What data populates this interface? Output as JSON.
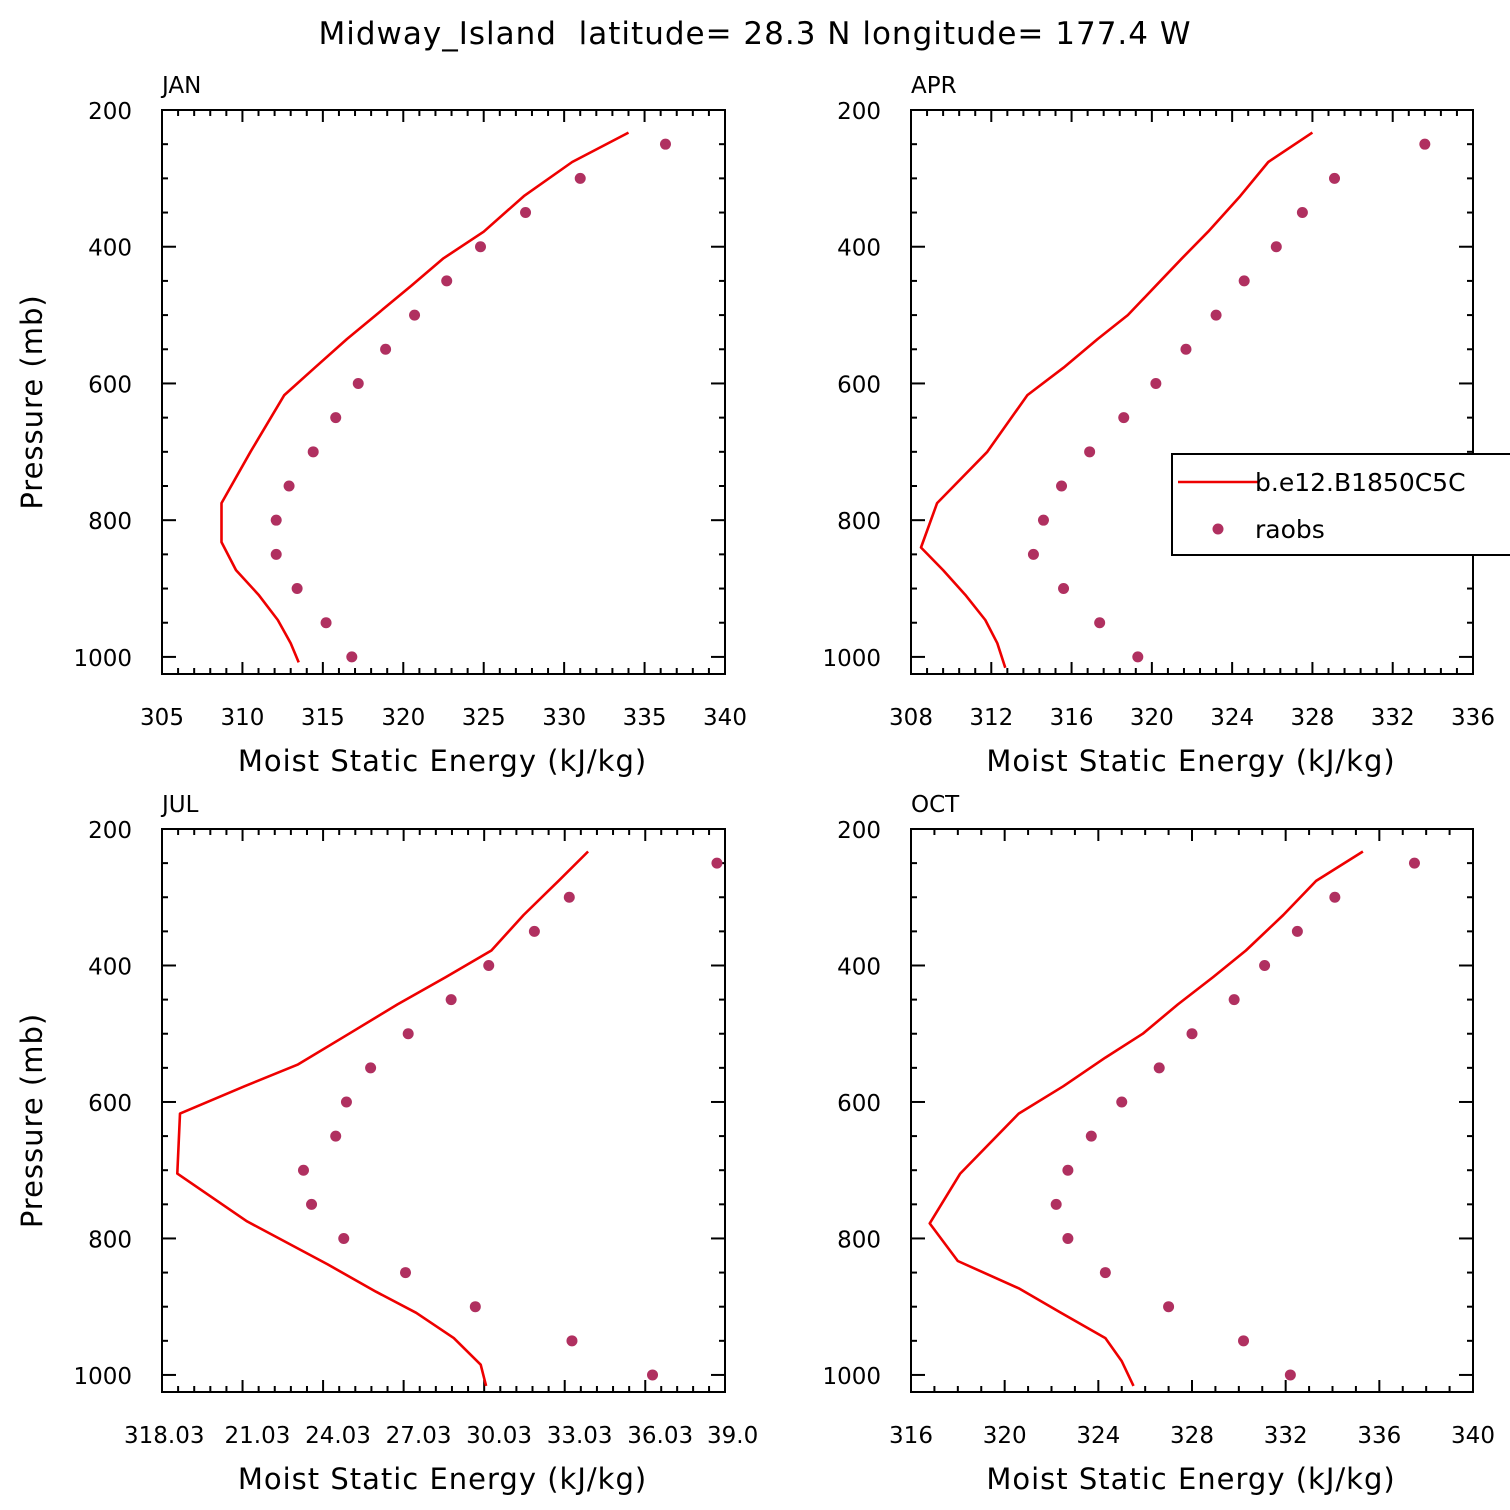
{
  "title": "Midway_Island  latitude= 28.3 N longitude= 177.4 W",
  "colors": {
    "model": "#ee0000",
    "obs": "#b03060",
    "axis": "#000000"
  },
  "legend": {
    "placement": "right side of APR panel",
    "entries": [
      {
        "label": "b.e12.B1850C5C",
        "style": "line",
        "color": "#ee0000"
      },
      {
        "label": "raobs",
        "style": "dot",
        "color": "#b03060"
      }
    ]
  },
  "chart_data": [
    {
      "type": "line",
      "panel": "JAN",
      "xlabel": "Moist Static Energy (kJ/kg)",
      "ylabel": "Pressure (mb)",
      "xlim": [
        305,
        340
      ],
      "ylim": [
        1000,
        200
      ],
      "xticks": [
        305,
        310,
        315,
        320,
        325,
        330,
        335,
        340
      ],
      "xtick_labels": [
        "305",
        "310",
        "315",
        "320",
        "325",
        "330",
        "335",
        "340"
      ],
      "yticks": [
        200,
        400,
        600,
        800,
        1000
      ],
      "ytick_labels": [
        "200",
        "400",
        "600",
        "800",
        "1000"
      ],
      "series": [
        {
          "name": "b.e12.B1850C5C",
          "style": "line",
          "x": [
            334.0,
            330.5,
            327.5,
            325.0,
            322.5,
            320.5,
            318.3,
            316.5,
            314.5,
            312.6,
            310.5,
            308.7,
            308.7,
            309.6,
            311.0,
            312.2,
            313.0,
            313.5
          ],
          "y": [
            233,
            276,
            326,
            378,
            417,
            457,
            500,
            535,
            577,
            617,
            700,
            775,
            832,
            873,
            909,
            946,
            980,
            1008
          ]
        },
        {
          "name": "raobs",
          "style": "dot",
          "x": [
            336.3,
            331.0,
            327.6,
            324.8,
            322.7,
            320.7,
            318.9,
            317.2,
            315.8,
            314.4,
            312.9,
            312.1,
            312.1,
            313.4,
            315.2,
            316.8
          ],
          "y": [
            250,
            300,
            350,
            400,
            450,
            500,
            550,
            600,
            650,
            700,
            750,
            800,
            850,
            900,
            950,
            1000
          ]
        }
      ]
    },
    {
      "type": "line",
      "panel": "APR",
      "xlabel": "Moist Static Energy (kJ/kg)",
      "ylabel": "",
      "xlim": [
        308,
        336
      ],
      "ylim": [
        1000,
        200
      ],
      "xticks": [
        308,
        312,
        316,
        320,
        324,
        328,
        332,
        336
      ],
      "xtick_labels": [
        "308",
        "312",
        "316",
        "320",
        "324",
        "328",
        "332",
        "336"
      ],
      "yticks": [
        200,
        400,
        600,
        800,
        1000
      ],
      "ytick_labels": [
        "200",
        "400",
        "600",
        "800",
        "1000"
      ],
      "series": [
        {
          "name": "b.e12.B1850C5C",
          "style": "line",
          "x": [
            328.0,
            325.8,
            324.4,
            322.8,
            321.5,
            320.2,
            318.8,
            317.3,
            315.6,
            313.8,
            311.8,
            309.3,
            308.5,
            309.6,
            310.7,
            311.7,
            312.3,
            312.7
          ],
          "y": [
            233,
            276,
            326,
            378,
            417,
            457,
            500,
            535,
            577,
            617,
            700,
            775,
            840,
            873,
            909,
            946,
            980,
            1016
          ]
        },
        {
          "name": "raobs",
          "style": "dot",
          "x": [
            333.6,
            329.1,
            327.5,
            326.2,
            324.6,
            323.2,
            321.7,
            320.2,
            318.6,
            316.9,
            315.5,
            314.6,
            314.1,
            315.6,
            317.4,
            319.3
          ],
          "y": [
            250,
            300,
            350,
            400,
            450,
            500,
            550,
            600,
            650,
            700,
            750,
            800,
            850,
            900,
            950,
            1000
          ]
        }
      ]
    },
    {
      "type": "line",
      "panel": "JUL",
      "xlabel": "Moist Static Energy (kJ/kg)",
      "ylabel": "Pressure (mb)",
      "xlim": [
        318.03,
        339.0
      ],
      "ylim": [
        1000,
        200
      ],
      "xticks": [
        318.03,
        321.03,
        324.03,
        327.03,
        330.03,
        333.03,
        336.03,
        339.0
      ],
      "xtick_labels": [
        "318.03",
        "21.03",
        "24.03",
        "27.03",
        "30.03",
        "33.03",
        "36.03",
        "39.0"
      ],
      "yticks": [
        200,
        400,
        600,
        800,
        1000
      ],
      "ytick_labels": [
        "200",
        "400",
        "600",
        "800",
        "1000"
      ],
      "series": [
        {
          "name": "b.e12.B1850C5C",
          "style": "line",
          "x": [
            333.9,
            332.8,
            331.5,
            330.3,
            328.6,
            326.8,
            325.0,
            323.1,
            321.1,
            318.7,
            318.6,
            321.2,
            324.2,
            326.0,
            327.5,
            328.9,
            329.9,
            330.1
          ],
          "y": [
            233,
            276,
            326,
            378,
            417,
            457,
            500,
            545,
            577,
            617,
            705,
            775,
            838,
            878,
            909,
            946,
            985,
            1016
          ]
        },
        {
          "name": "raobs",
          "style": "dot",
          "x": [
            338.7,
            333.2,
            331.9,
            330.2,
            328.8,
            327.2,
            325.8,
            324.9,
            324.5,
            323.3,
            323.6,
            324.8,
            327.1,
            329.7,
            333.3,
            336.3
          ],
          "y": [
            250,
            300,
            350,
            400,
            450,
            500,
            550,
            600,
            650,
            700,
            750,
            800,
            850,
            900,
            950,
            1000
          ]
        }
      ]
    },
    {
      "type": "line",
      "panel": "OCT",
      "xlabel": "Moist Static Energy (kJ/kg)",
      "ylabel": "",
      "xlim": [
        316,
        340
      ],
      "ylim": [
        1000,
        200
      ],
      "xticks": [
        316,
        320,
        324,
        328,
        332,
        336,
        340
      ],
      "xtick_labels": [
        "316",
        "320",
        "324",
        "328",
        "332",
        "336",
        "340"
      ],
      "yticks": [
        200,
        400,
        600,
        800,
        1000
      ],
      "ytick_labels": [
        "200",
        "400",
        "600",
        "800",
        "1000"
      ],
      "series": [
        {
          "name": "b.e12.B1850C5C",
          "style": "line",
          "x": [
            335.3,
            333.3,
            331.9,
            330.3,
            328.9,
            327.4,
            325.9,
            324.3,
            322.5,
            320.6,
            318.1,
            316.8,
            318.0,
            320.6,
            322.4,
            324.3,
            325.0,
            325.5
          ],
          "y": [
            233,
            276,
            326,
            378,
            417,
            457,
            500,
            535,
            577,
            617,
            705,
            778,
            833,
            873,
            909,
            946,
            980,
            1016
          ]
        },
        {
          "name": "raobs",
          "style": "dot",
          "x": [
            337.5,
            334.1,
            332.5,
            331.1,
            329.8,
            328.0,
            326.6,
            325.0,
            323.7,
            322.7,
            322.2,
            322.7,
            324.3,
            327.0,
            330.2,
            332.2
          ],
          "y": [
            250,
            300,
            350,
            400,
            450,
            500,
            550,
            600,
            650,
            700,
            750,
            800,
            850,
            900,
            950,
            1000
          ]
        }
      ]
    }
  ]
}
